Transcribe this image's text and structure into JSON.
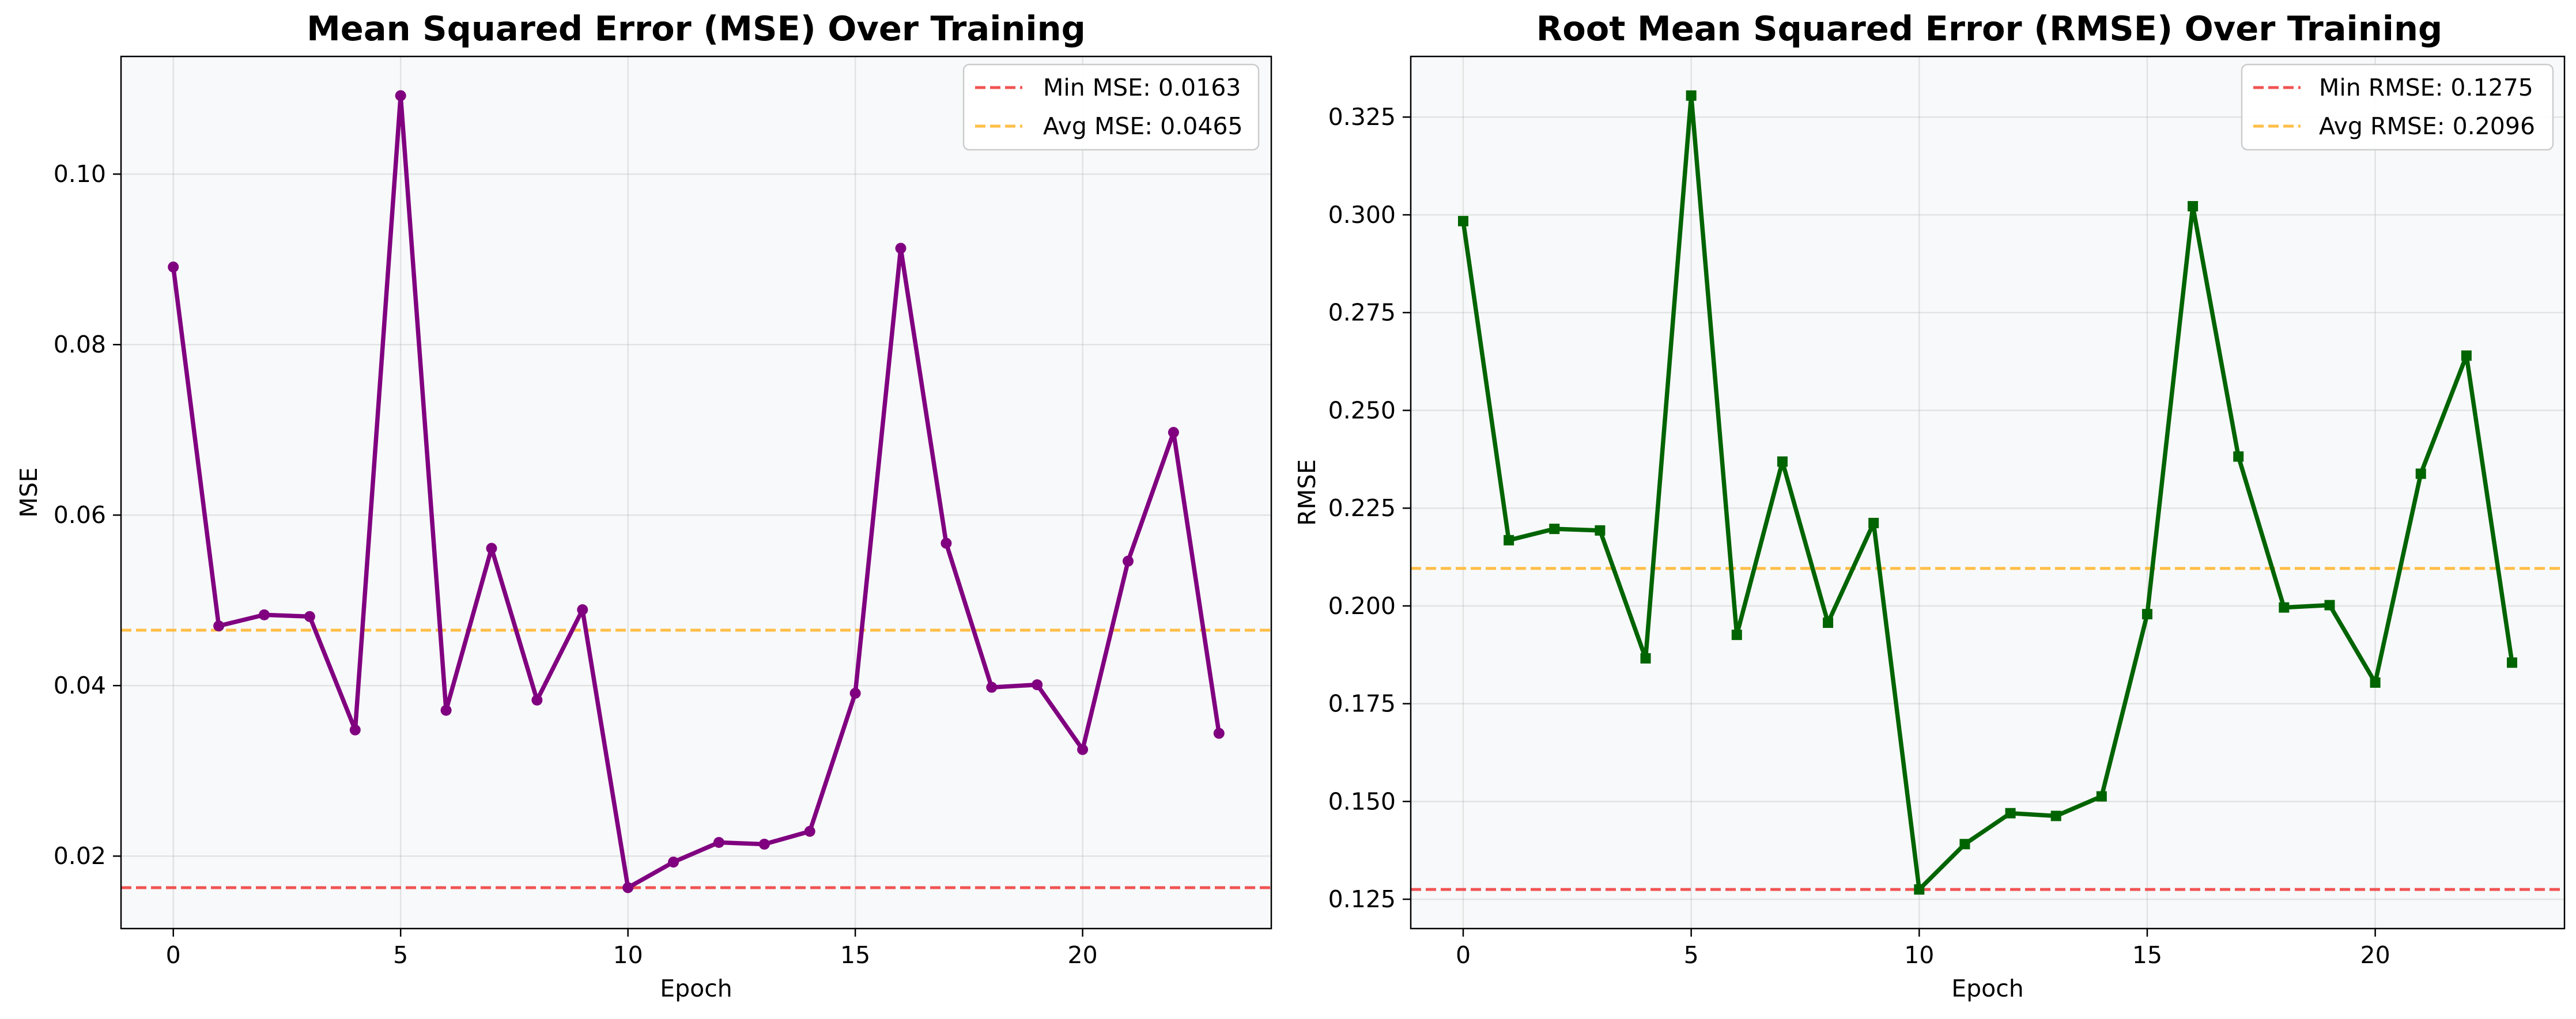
{
  "chart_data": [
    {
      "type": "line",
      "title": "Mean Squared Error (MSE) Over Training",
      "xlabel": "Epoch",
      "ylabel": "MSE",
      "xlim": [
        -1.15,
        24.15
      ],
      "ylim": [
        0.0115,
        0.1138
      ],
      "xticks": [
        0,
        5,
        10,
        15,
        20
      ],
      "yticks": [
        0.02,
        0.04,
        0.06,
        0.08,
        0.1
      ],
      "ytick_labels": [
        "0.02",
        "0.04",
        "0.06",
        "0.08",
        "0.10"
      ],
      "grid": true,
      "legend_position": "top-right",
      "series": [
        {
          "name": "MSE",
          "color": "#800080",
          "marker": "circle",
          "x": [
            0,
            1,
            2,
            3,
            4,
            5,
            6,
            7,
            8,
            9,
            10,
            11,
            12,
            13,
            14,
            15,
            16,
            17,
            18,
            19,
            20,
            21,
            22,
            23
          ],
          "values": [
            0.0891,
            0.047,
            0.0483,
            0.0481,
            0.0348,
            0.1092,
            0.0371,
            0.0561,
            0.0383,
            0.0489,
            0.0163,
            0.0193,
            0.0216,
            0.0214,
            0.0229,
            0.0391,
            0.0913,
            0.0567,
            0.0398,
            0.0401,
            0.0325,
            0.0546,
            0.0697,
            0.0344
          ]
        }
      ],
      "reference_lines": [
        {
          "label": "Min MSE: 0.0163",
          "value": 0.0163,
          "color": "#f04040"
        },
        {
          "label": "Avg MSE: 0.0465",
          "value": 0.0465,
          "color": "#ffb733"
        }
      ]
    },
    {
      "type": "line",
      "title": "Root Mean Squared Error (RMSE) Over Training",
      "xlabel": "Epoch",
      "ylabel": "RMSE",
      "xlim": [
        -1.15,
        24.15
      ],
      "ylim": [
        0.1175,
        0.3405
      ],
      "xticks": [
        0,
        5,
        10,
        15,
        20
      ],
      "yticks": [
        0.125,
        0.15,
        0.175,
        0.2,
        0.225,
        0.25,
        0.275,
        0.3,
        0.325
      ],
      "ytick_labels": [
        "0.125",
        "0.150",
        "0.175",
        "0.200",
        "0.225",
        "0.250",
        "0.275",
        "0.300",
        "0.325"
      ],
      "grid": true,
      "legend_position": "top-right",
      "series": [
        {
          "name": "RMSE",
          "color": "#006400",
          "marker": "square",
          "x": [
            0,
            1,
            2,
            3,
            4,
            5,
            6,
            7,
            8,
            9,
            10,
            11,
            12,
            13,
            14,
            15,
            16,
            17,
            18,
            19,
            20,
            21,
            22,
            23
          ],
          "values": [
            0.2984,
            0.2168,
            0.2197,
            0.2193,
            0.1866,
            0.3305,
            0.1926,
            0.2369,
            0.1957,
            0.2212,
            0.1275,
            0.1391,
            0.147,
            0.1463,
            0.1513,
            0.1979,
            0.3022,
            0.2382,
            0.1996,
            0.2002,
            0.1804,
            0.2338,
            0.264,
            0.1855
          ]
        }
      ],
      "reference_lines": [
        {
          "label": "Min RMSE: 0.1275",
          "value": 0.1275,
          "color": "#f04040"
        },
        {
          "label": "Avg RMSE: 0.2096",
          "value": 0.2096,
          "color": "#ffb733"
        }
      ]
    }
  ]
}
